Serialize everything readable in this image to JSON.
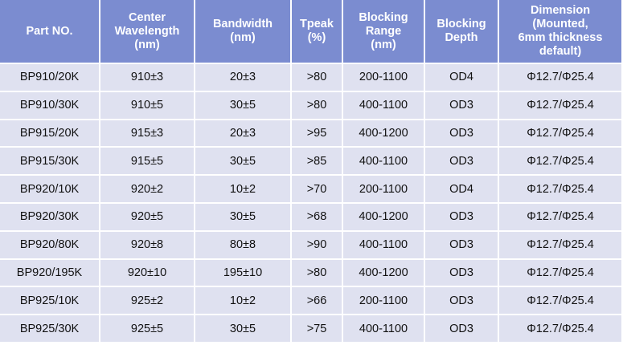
{
  "header": [
    [
      "Part NO."
    ],
    [
      "Center",
      "Wavelength",
      "(nm)"
    ],
    [
      "Bandwidth",
      "(nm)"
    ],
    [
      "Tpeak",
      "(%)"
    ],
    [
      "Blocking",
      "Range",
      "(nm)"
    ],
    [
      "Blocking",
      "Depth"
    ],
    [
      "Dimension",
      "(Mounted,",
      "6mm thickness",
      "default)"
    ]
  ],
  "rows": [
    [
      "BP910/20K",
      "910±3",
      "20±3",
      ">80",
      "200-1100",
      "OD4",
      "Φ12.7/Φ25.4"
    ],
    [
      "BP910/30K",
      "910±5",
      "30±5",
      ">80",
      "400-1100",
      "OD3",
      "Φ12.7/Φ25.4"
    ],
    [
      "BP915/20K",
      "915±3",
      "20±3",
      ">95",
      "400-1200",
      "OD3",
      "Φ12.7/Φ25.4"
    ],
    [
      "BP915/30K",
      "915±5",
      "30±5",
      ">85",
      "400-1100",
      "OD3",
      "Φ12.7/Φ25.4"
    ],
    [
      "BP920/10K",
      "920±2",
      "10±2",
      ">70",
      "200-1100",
      "OD4",
      "Φ12.7/Φ25.4"
    ],
    [
      "BP920/30K",
      "920±5",
      "30±5",
      ">68",
      "400-1200",
      "OD3",
      "Φ12.7/Φ25.4"
    ],
    [
      "BP920/80K",
      "920±8",
      "80±8",
      ">90",
      "400-1100",
      "OD3",
      "Φ12.7/Φ25.4"
    ],
    [
      "BP920/195K",
      "920±10",
      "195±10",
      ">80",
      "400-1200",
      "OD3",
      "Φ12.7/Φ25.4"
    ],
    [
      "BP925/10K",
      "925±2",
      "10±2",
      ">66",
      "200-1100",
      "OD3",
      "Φ12.7/Φ25.4"
    ],
    [
      "BP925/30K",
      "925±5",
      "30±5",
      ">75",
      "400-1100",
      "OD3",
      "Φ12.7/Φ25.4"
    ]
  ]
}
